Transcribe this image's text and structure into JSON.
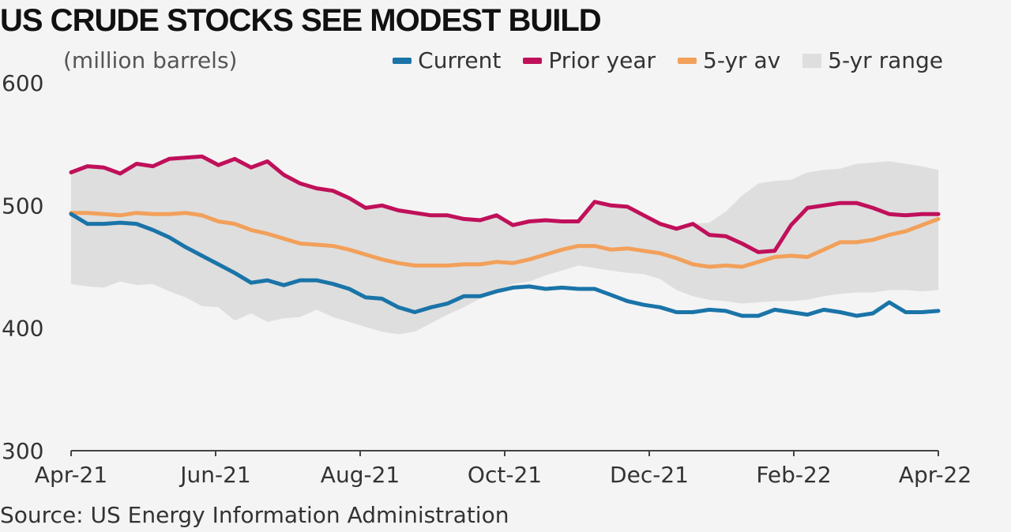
{
  "title": "US CRUDE STOCKS SEE MODEST BUILD",
  "unit_label": "(million barrels)",
  "source": "Source: US Energy Information Administration",
  "colors": {
    "current": "#1a74a8",
    "prior_year": "#c0105a",
    "five_yr_av": "#f2a05a",
    "five_yr_range": "#dedede",
    "axis": "#444444"
  },
  "chart_data": {
    "type": "line",
    "title": "US CRUDE STOCKS SEE MODEST BUILD",
    "ylabel": "(million barrels)",
    "xlabel": "",
    "ylim": [
      300,
      600
    ],
    "yticks": [
      300,
      400,
      500,
      600
    ],
    "x_tick_labels": [
      "Apr-21",
      "Jun-21",
      "Aug-21",
      "Oct-21",
      "Dec-21",
      "Feb-22",
      "Apr-22"
    ],
    "legend": [
      "Current",
      "Prior year",
      "5-yr av",
      "5-yr range"
    ],
    "legend_position": "top-right",
    "grid": false,
    "weeks": 54,
    "series": [
      {
        "name": "Current",
        "color": "#1a74a8",
        "values": [
          493,
          485,
          485,
          486,
          485,
          480,
          474,
          466,
          459,
          452,
          445,
          437,
          439,
          435,
          439,
          439,
          436,
          432,
          425,
          424,
          417,
          413,
          417,
          420,
          426,
          426,
          430,
          433,
          434,
          432,
          433,
          432,
          432,
          427,
          422,
          419,
          417,
          413,
          413,
          415,
          414,
          410,
          410,
          415,
          413,
          411,
          415,
          413,
          410,
          412,
          421,
          413,
          413,
          414
        ]
      },
      {
        "name": "Prior year",
        "color": "#c0105a",
        "values": [
          527,
          532,
          531,
          526,
          534,
          532,
          538,
          539,
          540,
          533,
          538,
          531,
          536,
          525,
          518,
          514,
          512,
          506,
          498,
          500,
          496,
          494,
          492,
          492,
          489,
          488,
          492,
          484,
          487,
          488,
          487,
          487,
          503,
          500,
          499,
          492,
          485,
          481,
          485,
          476,
          475,
          469,
          462,
          463,
          484,
          498,
          500,
          502,
          502,
          498,
          493,
          492,
          493,
          493
        ]
      },
      {
        "name": "5-yr av",
        "color": "#f2a05a",
        "values": [
          494,
          494,
          493,
          492,
          494,
          493,
          493,
          494,
          492,
          487,
          485,
          480,
          477,
          473,
          469,
          468,
          467,
          464,
          460,
          456,
          453,
          451,
          451,
          451,
          452,
          452,
          454,
          453,
          456,
          460,
          464,
          467,
          467,
          464,
          465,
          463,
          461,
          457,
          452,
          450,
          451,
          450,
          454,
          458,
          459,
          458,
          464,
          470,
          470,
          472,
          476,
          479,
          484,
          489
        ]
      },
      {
        "name": "5-yr range",
        "color": "#dedede",
        "lower": [
          436,
          434,
          433,
          438,
          435,
          436,
          430,
          425,
          418,
          417,
          406,
          412,
          405,
          408,
          409,
          415,
          409,
          405,
          401,
          397,
          395,
          397,
          404,
          411,
          417,
          424,
          431,
          436,
          438,
          443,
          447,
          451,
          449,
          447,
          445,
          444,
          440,
          431,
          426,
          423,
          422,
          420,
          421,
          422,
          422,
          423,
          426,
          428,
          429,
          429,
          431,
          431,
          430,
          431
        ],
        "upper": [
          527,
          532,
          531,
          526,
          534,
          532,
          538,
          539,
          540,
          533,
          538,
          531,
          536,
          525,
          518,
          514,
          512,
          506,
          498,
          500,
          496,
          494,
          492,
          492,
          489,
          488,
          492,
          484,
          487,
          488,
          487,
          487,
          503,
          500,
          499,
          492,
          485,
          481,
          485,
          486,
          495,
          508,
          518,
          520,
          521,
          527,
          529,
          530,
          534,
          535,
          536,
          534,
          532,
          529
        ]
      }
    ]
  }
}
